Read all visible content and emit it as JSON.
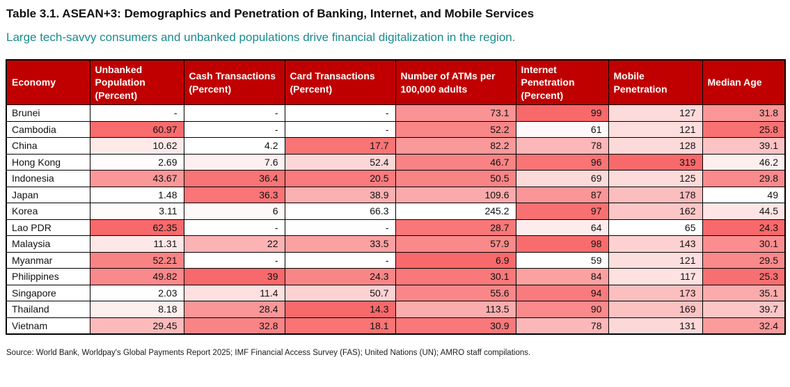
{
  "colors": {
    "header-bg": "#C00000",
    "header-text": "#FFFFFF",
    "subtitle-teal": "#1A8A8F",
    "border": "#000000",
    "heat-low": "#FFFFFF",
    "heat-high": "#F8696B"
  },
  "chart_data": {
    "type": "table",
    "title": "Table 3.1. ASEAN+3: Demographics and Penetration of Banking, Internet, and Mobile Services",
    "subtitle": "Large tech-savvy consumers and unbanked populations drive financial digitalization in the region.",
    "source": "Source: World Bank, Worldpay's Global Payments Report 2025; IMF Financial Access Survey (FAS); United Nations (UN); AMRO staff compilations.",
    "columns": [
      "Economy",
      "Unbanked Population (Percent)",
      "Cash Transactions (Percent)",
      "Card Transactions (Percent)",
      "Number of ATMs per 100,000 adults",
      "Internet Penetration (Percent)",
      "Mobile Penetration",
      "Median Age"
    ],
    "rows": [
      {
        "economy": "Brunei",
        "cells": [
          {
            "v": "-",
            "h": 0
          },
          {
            "v": "-",
            "h": 0
          },
          {
            "v": "-",
            "h": 0
          },
          {
            "v": "73.1",
            "h": 0.72
          },
          {
            "v": "99",
            "h": 1.0
          },
          {
            "v": "127",
            "h": 0.24
          },
          {
            "v": "31.8",
            "h": 0.7
          }
        ]
      },
      {
        "economy": "Cambodia",
        "cells": [
          {
            "v": "60.97",
            "h": 0.98
          },
          {
            "v": "-",
            "h": 0
          },
          {
            "v": "-",
            "h": 0
          },
          {
            "v": "52.2",
            "h": 0.81
          },
          {
            "v": "61",
            "h": 0.05
          },
          {
            "v": "121",
            "h": 0.22
          },
          {
            "v": "25.8",
            "h": 0.94
          }
        ]
      },
      {
        "economy": "China",
        "cells": [
          {
            "v": "10.62",
            "h": 0.15
          },
          {
            "v": "4.2",
            "h": 0
          },
          {
            "v": "17.7",
            "h": 0.93
          },
          {
            "v": "82.2",
            "h": 0.68
          },
          {
            "v": "78",
            "h": 0.48
          },
          {
            "v": "128",
            "h": 0.25
          },
          {
            "v": "39.1",
            "h": 0.4
          }
        ]
      },
      {
        "economy": "Hong Kong",
        "cells": [
          {
            "v": "2.69",
            "h": 0.02
          },
          {
            "v": "7.6",
            "h": 0.1
          },
          {
            "v": "52.4",
            "h": 0.27
          },
          {
            "v": "46.7",
            "h": 0.83
          },
          {
            "v": "96",
            "h": 0.93
          },
          {
            "v": "319",
            "h": 1.0
          },
          {
            "v": "46.2",
            "h": 0.11
          }
        ]
      },
      {
        "economy": "Indonesia",
        "cells": [
          {
            "v": "43.67",
            "h": 0.69
          },
          {
            "v": "36.4",
            "h": 0.93
          },
          {
            "v": "20.5",
            "h": 0.88
          },
          {
            "v": "50.5",
            "h": 0.82
          },
          {
            "v": "69",
            "h": 0.25
          },
          {
            "v": "125",
            "h": 0.24
          },
          {
            "v": "29.8",
            "h": 0.78
          }
        ]
      },
      {
        "economy": "Japan",
        "cells": [
          {
            "v": "1.48",
            "h": 0
          },
          {
            "v": "36.3",
            "h": 0.92
          },
          {
            "v": "38.9",
            "h": 0.53
          },
          {
            "v": "109.6",
            "h": 0.57
          },
          {
            "v": "87",
            "h": 0.7
          },
          {
            "v": "178",
            "h": 0.44
          },
          {
            "v": "49",
            "h": 0
          }
        ]
      },
      {
        "economy": "Korea",
        "cells": [
          {
            "v": "3.11",
            "h": 0.03
          },
          {
            "v": "6",
            "h": 0.05
          },
          {
            "v": "66.3",
            "h": 0
          },
          {
            "v": "245.2",
            "h": 0
          },
          {
            "v": "97",
            "h": 0.95
          },
          {
            "v": "162",
            "h": 0.38
          },
          {
            "v": "44.5",
            "h": 0.18
          }
        ]
      },
      {
        "economy": "Lao PDR",
        "cells": [
          {
            "v": "62.35",
            "h": 1.0
          },
          {
            "v": "-",
            "h": 0
          },
          {
            "v": "-",
            "h": 0
          },
          {
            "v": "28.7",
            "h": 0.91
          },
          {
            "v": "64",
            "h": 0.13
          },
          {
            "v": "65",
            "h": 0
          },
          {
            "v": "24.3",
            "h": 1.0
          }
        ]
      },
      {
        "economy": "Malaysia",
        "cells": [
          {
            "v": "11.31",
            "h": 0.16
          },
          {
            "v": "22",
            "h": 0.51
          },
          {
            "v": "33.5",
            "h": 0.63
          },
          {
            "v": "57.9",
            "h": 0.79
          },
          {
            "v": "98",
            "h": 0.98
          },
          {
            "v": "143",
            "h": 0.31
          },
          {
            "v": "30.1",
            "h": 0.76
          }
        ]
      },
      {
        "economy": "Myanmar",
        "cells": [
          {
            "v": "52.21",
            "h": 0.83
          },
          {
            "v": "-",
            "h": 0
          },
          {
            "v": "-",
            "h": 0
          },
          {
            "v": "6.9",
            "h": 1.0
          },
          {
            "v": "59",
            "h": 0
          },
          {
            "v": "121",
            "h": 0.22
          },
          {
            "v": "29.5",
            "h": 0.79
          }
        ]
      },
      {
        "economy": "Philippines",
        "cells": [
          {
            "v": "49.82",
            "h": 0.79
          },
          {
            "v": "39",
            "h": 1.0
          },
          {
            "v": "24.3",
            "h": 0.81
          },
          {
            "v": "30.1",
            "h": 0.9
          },
          {
            "v": "84",
            "h": 0.63
          },
          {
            "v": "117",
            "h": 0.2
          },
          {
            "v": "25.3",
            "h": 0.96
          }
        ]
      },
      {
        "economy": "Singapore",
        "cells": [
          {
            "v": "2.03",
            "h": 0.01
          },
          {
            "v": "11.4",
            "h": 0.21
          },
          {
            "v": "50.7",
            "h": 0.3
          },
          {
            "v": "55.6",
            "h": 0.8
          },
          {
            "v": "94",
            "h": 0.88
          },
          {
            "v": "173",
            "h": 0.43
          },
          {
            "v": "35.1",
            "h": 0.56
          }
        ]
      },
      {
        "economy": "Thailand",
        "cells": [
          {
            "v": "8.18",
            "h": 0.11
          },
          {
            "v": "28.4",
            "h": 0.7
          },
          {
            "v": "14.3",
            "h": 1.0
          },
          {
            "v": "113.5",
            "h": 0.55
          },
          {
            "v": "90",
            "h": 0.78
          },
          {
            "v": "169",
            "h": 0.41
          },
          {
            "v": "39.7",
            "h": 0.38
          }
        ]
      },
      {
        "economy": "Vietnam",
        "cells": [
          {
            "v": "29.45",
            "h": 0.46
          },
          {
            "v": "32.8",
            "h": 0.82
          },
          {
            "v": "18.1",
            "h": 0.93
          },
          {
            "v": "30.9",
            "h": 0.9
          },
          {
            "v": "78",
            "h": 0.48
          },
          {
            "v": "131",
            "h": 0.26
          },
          {
            "v": "32.4",
            "h": 0.67
          }
        ]
      }
    ]
  }
}
